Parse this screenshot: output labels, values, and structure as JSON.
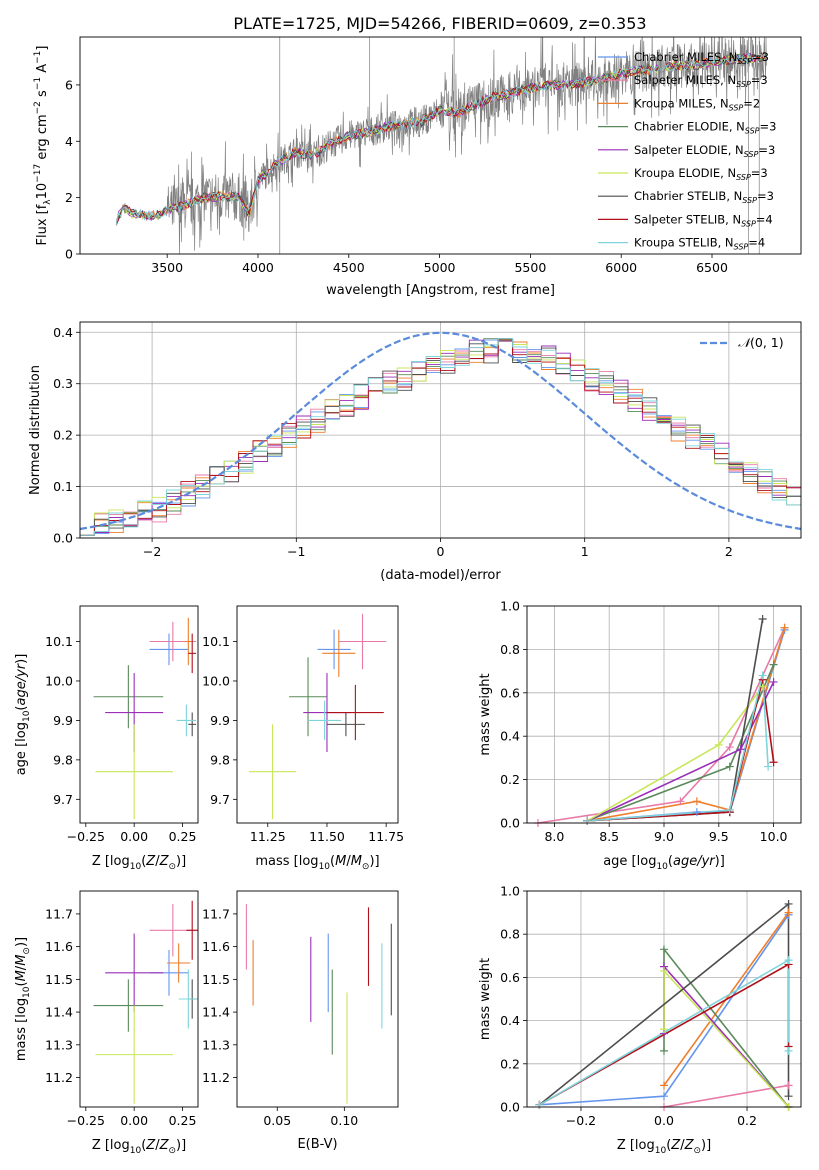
{
  "title": "PLATE=1725, MJD=54266, FIBERID=0609, z=0.353",
  "colors": {
    "Chabrier MILES": "#6495ed",
    "Salpeter MILES": "#e87aa8",
    "Kroupa MILES": "#ee7f2d",
    "Chabrier ELODIE": "#5a8a5a",
    "Salpeter ELODIE": "#9b2fb8",
    "Kroupa ELODIE": "#c8e65a",
    "Chabrier STELIB": "#4d4d4d",
    "Salpeter STELIB": "#b0101a",
    "Kroupa STELIB": "#7fd4dc",
    "spectrum": "#808080",
    "normal": "#5b8bdb"
  },
  "chart_data": [
    {
      "id": "spectrum",
      "type": "line",
      "xlabel": "wavelength [Angstrom, rest frame]",
      "ylabel": "Flux [f",
      "xlim": [
        3020,
        6990
      ],
      "ylim": [
        0,
        7.7
      ],
      "xticks": [
        3500,
        4000,
        4500,
        5000,
        5500,
        6000,
        6500
      ],
      "yticks": [
        0,
        2,
        4,
        6
      ],
      "legend_position": "right",
      "legend": [
        {
          "model": "Chabrier MILES",
          "n": "3"
        },
        {
          "model": "Salpeter MILES",
          "n": "3"
        },
        {
          "model": "Kroupa MILES",
          "n": "2"
        },
        {
          "model": "Chabrier ELODIE",
          "n": "3"
        },
        {
          "model": "Salpeter ELODIE",
          "n": "3"
        },
        {
          "model": "Kroupa ELODIE",
          "n": "3"
        },
        {
          "model": "Chabrier STELIB",
          "n": "3"
        },
        {
          "model": "Salpeter STELIB",
          "n": "4"
        },
        {
          "model": "Kroupa STELIB",
          "n": "4"
        }
      ],
      "continuum": [
        [
          3220,
          1.2
        ],
        [
          3260,
          1.65
        ],
        [
          3300,
          1.45
        ],
        [
          3350,
          1.4
        ],
        [
          3400,
          1.35
        ],
        [
          3450,
          1.4
        ],
        [
          3500,
          1.55
        ],
        [
          3600,
          1.75
        ],
        [
          3700,
          2.0
        ],
        [
          3800,
          2.05
        ],
        [
          3900,
          2.0
        ],
        [
          3950,
          1.4
        ],
        [
          4000,
          2.6
        ],
        [
          4100,
          3.2
        ],
        [
          4200,
          3.6
        ],
        [
          4300,
          3.5
        ],
        [
          4400,
          3.9
        ],
        [
          4500,
          4.2
        ],
        [
          4600,
          4.3
        ],
        [
          4700,
          4.5
        ],
        [
          4800,
          4.6
        ],
        [
          4900,
          4.7
        ],
        [
          5000,
          5.1
        ],
        [
          5100,
          5.0
        ],
        [
          5200,
          5.3
        ],
        [
          5300,
          5.6
        ],
        [
          5400,
          5.7
        ],
        [
          5500,
          5.9
        ],
        [
          5600,
          6.0
        ],
        [
          5700,
          6.0
        ],
        [
          5800,
          6.1
        ],
        [
          5900,
          6.2
        ],
        [
          6000,
          6.4
        ],
        [
          6200,
          6.6
        ],
        [
          6400,
          6.7
        ],
        [
          6600,
          6.9
        ],
        [
          6800,
          7.0
        ]
      ]
    },
    {
      "id": "residuals",
      "type": "histogram",
      "xlabel": "(data-model)/error",
      "ylabel": "Normed distribution",
      "xlim": [
        -2.5,
        2.5
      ],
      "ylim": [
        0,
        0.42
      ],
      "xticks": [
        -2,
        -1,
        0,
        1,
        2
      ],
      "yticks": [
        0.0,
        0.1,
        0.2,
        0.3,
        0.4
      ],
      "grid": true,
      "legend_position": "top-right",
      "curve_label": "N(0,1)",
      "bin_edges": {
        "start": -2.5,
        "width": 0.1,
        "count": 50
      },
      "base_values": [
        0.03,
        0.03,
        0.035,
        0.04,
        0.05,
        0.055,
        0.07,
        0.085,
        0.1,
        0.115,
        0.13,
        0.15,
        0.165,
        0.18,
        0.2,
        0.215,
        0.23,
        0.245,
        0.26,
        0.275,
        0.29,
        0.3,
        0.31,
        0.325,
        0.335,
        0.345,
        0.35,
        0.36,
        0.365,
        0.37,
        0.365,
        0.36,
        0.35,
        0.34,
        0.33,
        0.31,
        0.3,
        0.285,
        0.265,
        0.25,
        0.23,
        0.21,
        0.195,
        0.18,
        0.16,
        0.14,
        0.125,
        0.11,
        0.095,
        0.08
      ]
    },
    {
      "id": "age-vs-z",
      "type": "errorbar",
      "xlabel": "Z [log",
      "ylabel": "age  [log",
      "xlim": [
        -0.28,
        0.33
      ],
      "ylim": [
        9.64,
        10.19
      ],
      "xticks": [
        -0.25,
        0.0,
        0.25
      ],
      "yticks": [
        9.7,
        9.8,
        9.9,
        10.0,
        10.1
      ],
      "points": [
        {
          "model": "Chabrier MILES",
          "x": 0.18,
          "xerr": 0.1,
          "y": 10.08,
          "yerr": 0.04
        },
        {
          "model": "Salpeter MILES",
          "x": 0.2,
          "xerr": 0.12,
          "y": 10.1,
          "yerr": 0.05
        },
        {
          "model": "Kroupa MILES",
          "x": 0.28,
          "xerr": 0.02,
          "y": 10.1,
          "yerr": 0.06
        },
        {
          "model": "Chabrier ELODIE",
          "x": -0.03,
          "xerr": 0.18,
          "y": 9.96,
          "yerr": 0.08
        },
        {
          "model": "Salpeter ELODIE",
          "x": 0.0,
          "xerr": 0.15,
          "y": 9.92,
          "yerr": 0.1
        },
        {
          "model": "Kroupa ELODIE",
          "x": 0.0,
          "xerr": 0.2,
          "y": 9.77,
          "yerr": 0.12
        },
        {
          "model": "Chabrier STELIB",
          "x": 0.3,
          "xerr": 0.02,
          "y": 9.89,
          "yerr": 0.03
        },
        {
          "model": "Salpeter STELIB",
          "x": 0.3,
          "xerr": 0.02,
          "y": 10.07,
          "yerr": 0.05
        },
        {
          "model": "Kroupa STELIB",
          "x": 0.27,
          "xerr": 0.05,
          "y": 9.9,
          "yerr": 0.04
        }
      ]
    },
    {
      "id": "age-vs-mass",
      "type": "errorbar",
      "xlabel": "mass [log",
      "ylabel": "",
      "xlim": [
        11.12,
        11.8
      ],
      "ylim": [
        9.64,
        10.19
      ],
      "xticks": [
        11.25,
        11.5,
        11.75
      ],
      "yticks": [
        9.7,
        9.8,
        9.9,
        10.0,
        10.1
      ],
      "points": [
        {
          "model": "Chabrier MILES",
          "x": 11.53,
          "xerr": 0.07,
          "y": 10.08,
          "yerr": 0.05
        },
        {
          "model": "Salpeter MILES",
          "x": 11.65,
          "xerr": 0.1,
          "y": 10.1,
          "yerr": 0.07
        },
        {
          "model": "Kroupa MILES",
          "x": 11.55,
          "xerr": 0.07,
          "y": 10.07,
          "yerr": 0.06
        },
        {
          "model": "Chabrier ELODIE",
          "x": 11.42,
          "xerr": 0.08,
          "y": 9.96,
          "yerr": 0.1
        },
        {
          "model": "Salpeter ELODIE",
          "x": 11.5,
          "xerr": 0.1,
          "y": 9.92,
          "yerr": 0.1
        },
        {
          "model": "Kroupa ELODIE",
          "x": 11.27,
          "xerr": 0.1,
          "y": 9.77,
          "yerr": 0.12
        },
        {
          "model": "Chabrier STELIB",
          "x": 11.58,
          "xerr": 0.08,
          "y": 9.89,
          "yerr": 0.03
        },
        {
          "model": "Salpeter STELIB",
          "x": 11.62,
          "xerr": 0.12,
          "y": 9.92,
          "yerr": 0.07
        },
        {
          "model": "Kroupa STELIB",
          "x": 11.49,
          "xerr": 0.07,
          "y": 9.9,
          "yerr": 0.05
        }
      ]
    },
    {
      "id": "weight-vs-age",
      "type": "line",
      "xlabel": "age  [log",
      "ylabel": "mass weight",
      "xlim": [
        7.75,
        10.25
      ],
      "ylim": [
        0,
        1
      ],
      "xticks": [
        8.0,
        8.5,
        9.0,
        9.5,
        10.0
      ],
      "yticks": [
        0.0,
        0.2,
        0.4,
        0.6,
        0.8,
        1.0
      ],
      "grid": true,
      "series": [
        {
          "model": "Chabrier MILES",
          "x": [
            8.3,
            9.3,
            9.6,
            10.1
          ],
          "y": [
            0.01,
            0.05,
            0.05,
            0.89
          ]
        },
        {
          "model": "Salpeter MILES",
          "x": [
            7.85,
            9.15,
            9.6,
            10.1
          ],
          "y": [
            0.0,
            0.1,
            0.35,
            0.9
          ]
        },
        {
          "model": "Kroupa MILES",
          "x": [
            8.3,
            9.3,
            9.6,
            10.1
          ],
          "y": [
            0.01,
            0.1,
            0.06,
            0.9
          ]
        },
        {
          "model": "Chabrier ELODIE",
          "x": [
            8.3,
            9.6,
            10.0
          ],
          "y": [
            0.01,
            0.26,
            0.73
          ]
        },
        {
          "model": "Salpeter ELODIE",
          "x": [
            8.3,
            9.7,
            10.0
          ],
          "y": [
            0.01,
            0.34,
            0.65
          ]
        },
        {
          "model": "Kroupa ELODIE",
          "x": [
            8.3,
            9.5,
            9.9
          ],
          "y": [
            0.01,
            0.36,
            0.63
          ]
        },
        {
          "model": "Chabrier STELIB",
          "x": [
            8.3,
            9.6,
            9.9
          ],
          "y": [
            0.01,
            0.05,
            0.94
          ]
        },
        {
          "model": "Salpeter STELIB",
          "x": [
            8.3,
            9.6,
            9.9,
            10.0
          ],
          "y": [
            0.01,
            0.05,
            0.66,
            0.28
          ]
        },
        {
          "model": "Kroupa STELIB",
          "x": [
            8.3,
            9.6,
            9.9,
            9.95
          ],
          "y": [
            0.01,
            0.06,
            0.68,
            0.26
          ]
        }
      ]
    },
    {
      "id": "mass-vs-z",
      "type": "errorbar",
      "xlabel": "Z [log",
      "ylabel": "mass [log",
      "xlim": [
        -0.28,
        0.33
      ],
      "ylim": [
        11.11,
        11.77
      ],
      "xticks": [
        -0.25,
        0.0,
        0.25
      ],
      "yticks": [
        11.2,
        11.3,
        11.4,
        11.5,
        11.6,
        11.7
      ],
      "points": [
        {
          "model": "Chabrier MILES",
          "x": 0.18,
          "xerr": 0.1,
          "y": 11.52,
          "yerr": 0.07
        },
        {
          "model": "Salpeter MILES",
          "x": 0.2,
          "xerr": 0.12,
          "y": 11.65,
          "yerr": 0.08
        },
        {
          "model": "Kroupa MILES",
          "x": 0.23,
          "xerr": 0.06,
          "y": 11.55,
          "yerr": 0.06
        },
        {
          "model": "Chabrier ELODIE",
          "x": -0.03,
          "xerr": 0.18,
          "y": 11.42,
          "yerr": 0.08
        },
        {
          "model": "Salpeter ELODIE",
          "x": 0.0,
          "xerr": 0.15,
          "y": 11.52,
          "yerr": 0.12
        },
        {
          "model": "Kroupa ELODIE",
          "x": 0.0,
          "xerr": 0.2,
          "y": 11.27,
          "yerr": 0.15
        },
        {
          "model": "Chabrier STELIB",
          "x": 0.3,
          "xerr": 0.02,
          "y": 11.44,
          "yerr": 0.06
        },
        {
          "model": "Salpeter STELIB",
          "x": 0.3,
          "xerr": 0.03,
          "y": 11.65,
          "yerr": 0.09
        },
        {
          "model": "Kroupa STELIB",
          "x": 0.28,
          "xerr": 0.05,
          "y": 11.44,
          "yerr": 0.09
        }
      ]
    },
    {
      "id": "mass-vs-ebv",
      "type": "errorbar",
      "xlabel": "E(B-V)",
      "ylabel": "",
      "xlim": [
        0.02,
        0.14
      ],
      "ylim": [
        11.11,
        11.77
      ],
      "xticks": [
        0.05,
        0.1
      ],
      "yticks": [
        11.2,
        11.3,
        11.4,
        11.5,
        11.6,
        11.7
      ],
      "points": [
        {
          "model": "Chabrier MILES",
          "x": 0.088,
          "xerr": 0,
          "y": 11.52,
          "yerr": 0.12
        },
        {
          "model": "Salpeter MILES",
          "x": 0.027,
          "xerr": 0,
          "y": 11.63,
          "yerr": 0.1
        },
        {
          "model": "Kroupa MILES",
          "x": 0.032,
          "xerr": 0,
          "y": 11.52,
          "yerr": 0.1
        },
        {
          "model": "Chabrier ELODIE",
          "x": 0.091,
          "xerr": 0,
          "y": 11.4,
          "yerr": 0.13
        },
        {
          "model": "Salpeter ELODIE",
          "x": 0.075,
          "xerr": 0,
          "y": 11.5,
          "yerr": 0.13
        },
        {
          "model": "Kroupa ELODIE",
          "x": 0.102,
          "xerr": 0,
          "y": 11.29,
          "yerr": 0.17
        },
        {
          "model": "Chabrier STELIB",
          "x": 0.135,
          "xerr": 0,
          "y": 11.53,
          "yerr": 0.14
        },
        {
          "model": "Salpeter STELIB",
          "x": 0.118,
          "xerr": 0,
          "y": 11.6,
          "yerr": 0.12
        },
        {
          "model": "Kroupa STELIB",
          "x": 0.128,
          "xerr": 0,
          "y": 11.48,
          "yerr": 0.13
        }
      ]
    },
    {
      "id": "weight-vs-z",
      "type": "line",
      "xlabel": "Z [log",
      "ylabel": "mass weight",
      "xlim": [
        -0.33,
        0.33
      ],
      "ylim": [
        0,
        1
      ],
      "xticks": [
        -0.2,
        0.0,
        0.2
      ],
      "yticks": [
        0.0,
        0.2,
        0.4,
        0.6,
        0.8,
        1.0
      ],
      "grid": true,
      "series": [
        {
          "model": "Chabrier MILES",
          "x": [
            -0.3,
            0.0,
            0.3
          ],
          "y": [
            0.01,
            0.05,
            0.89
          ]
        },
        {
          "model": "Salpeter MILES",
          "x": [
            0.0,
            0.3
          ],
          "y": [
            0.0,
            0.1
          ]
        },
        {
          "model": "Kroupa MILES",
          "x": [
            0.0,
            0.3
          ],
          "y": [
            0.1,
            0.9
          ]
        },
        {
          "model": "Chabrier ELODIE",
          "x": [
            0.0,
            0.0,
            0.3
          ],
          "y": [
            0.26,
            0.73,
            0.0
          ]
        },
        {
          "model": "Salpeter ELODIE",
          "x": [
            0.0,
            0.0,
            0.3
          ],
          "y": [
            0.34,
            0.65,
            0.0
          ]
        },
        {
          "model": "Kroupa ELODIE",
          "x": [
            0.0,
            0.0,
            0.3
          ],
          "y": [
            0.36,
            0.63,
            0.0
          ]
        },
        {
          "model": "Chabrier STELIB",
          "x": [
            -0.3,
            0.3,
            0.3
          ],
          "y": [
            0.01,
            0.94,
            0.05
          ]
        },
        {
          "model": "Salpeter STELIB",
          "x": [
            -0.3,
            0.3,
            0.3
          ],
          "y": [
            0.01,
            0.66,
            0.28
          ]
        },
        {
          "model": "Kroupa STELIB",
          "x": [
            -0.3,
            0.3,
            0.3
          ],
          "y": [
            0.01,
            0.68,
            0.26
          ]
        }
      ]
    }
  ]
}
